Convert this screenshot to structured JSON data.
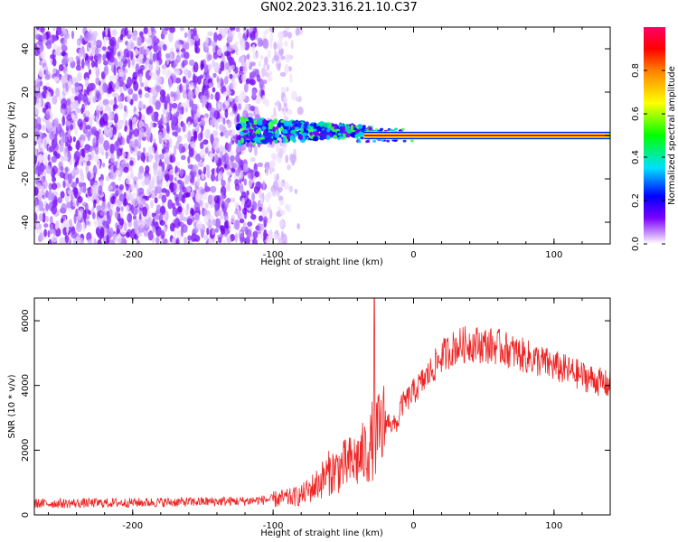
{
  "title": "GN02.2023.316.21.10.C37",
  "chart_data": [
    {
      "type": "heatmap",
      "xlabel": "Height of straight line (km)",
      "ylabel": "Frequency (Hz)",
      "xlim": [
        -270,
        140
      ],
      "ylim": [
        -50,
        50
      ],
      "xticks": [
        -200,
        -100,
        0,
        100
      ],
      "yticks": [
        -40,
        -20,
        0,
        20,
        40
      ],
      "colorbar": {
        "label": "Normalized spectral amplitude",
        "ticks": [
          "0.0",
          "0.2",
          "0.4",
          "0.6",
          "0.8"
        ],
        "tick_values": [
          0.0,
          0.2,
          0.4,
          0.6,
          0.8
        ],
        "range": [
          0,
          1
        ],
        "colormap": [
          "#ffffff",
          "#7a00ff",
          "#0000ff",
          "#00e0ff",
          "#00ff00",
          "#ffff00",
          "#ff0000",
          "#ff0066"
        ]
      },
      "features": [
        {
          "description_free": true,
          "x_range": [
            -270,
            -85
          ],
          "f_range": [
            -50,
            50
          ],
          "amplitude": 0.1
        },
        {
          "x_range": [
            -125,
            -35
          ],
          "f_center": 2,
          "f_halfwidth": 8,
          "amplitude": 0.25
        },
        {
          "x_range": [
            -35,
            140
          ],
          "f_center": 0,
          "f_halfwidth": 1,
          "amplitude": 0.95
        }
      ]
    },
    {
      "type": "line",
      "xlabel": "Height of straight line (km)",
      "ylabel": "SNR (10 * v/v)",
      "xlim": [
        -270,
        140
      ],
      "ylim": [
        0,
        6700
      ],
      "xticks": [
        -200,
        -100,
        0,
        100
      ],
      "yticks": [
        0,
        2000,
        4000,
        6000
      ],
      "color": "#ee2222",
      "x": [
        -270,
        -240,
        -200,
        -160,
        -120,
        -100,
        -90,
        -80,
        -70,
        -60,
        -50,
        -40,
        -35,
        -30,
        -28,
        -26,
        -20,
        -10,
        0,
        10,
        20,
        30,
        40,
        60,
        80,
        100,
        120,
        140
      ],
      "y": [
        350,
        360,
        380,
        400,
        430,
        480,
        520,
        600,
        900,
        1300,
        1500,
        1700,
        1900,
        2100,
        6700,
        2400,
        2800,
        3300,
        3800,
        4300,
        4900,
        5200,
        5300,
        5200,
        4900,
        4600,
        4300,
        4000
      ]
    }
  ]
}
